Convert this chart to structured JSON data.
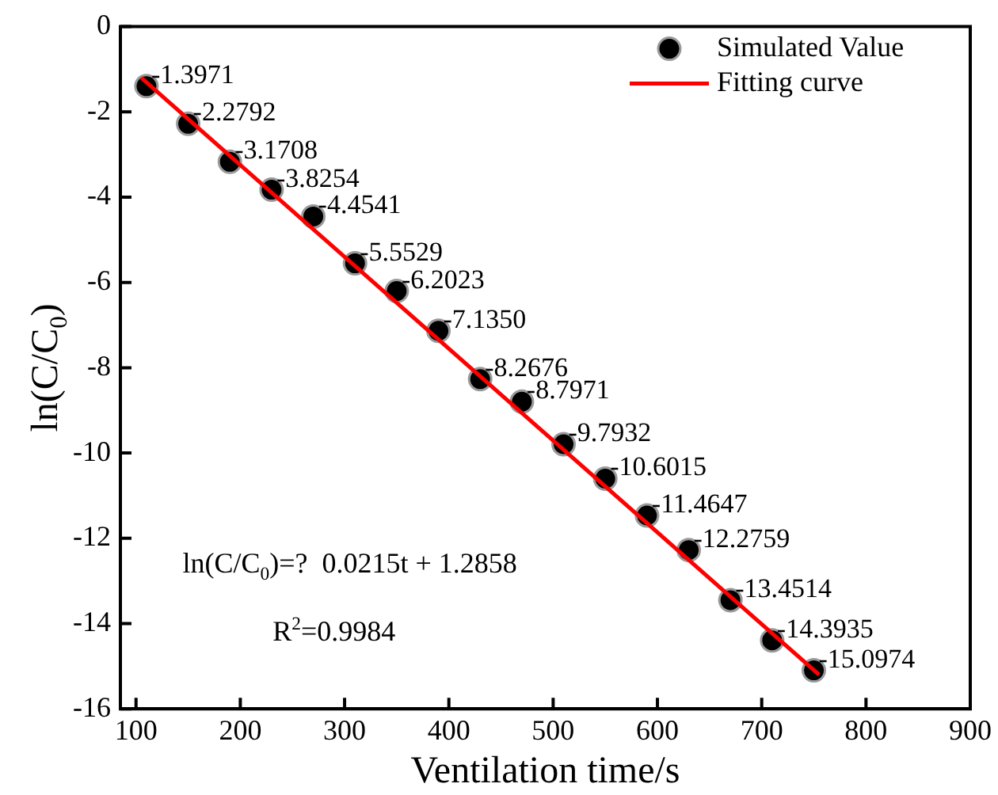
{
  "chart_data": {
    "type": "scatter",
    "xlabel": "Ventilation time/s",
    "ylabel": "ln(C/C$_{0}$)",
    "xlim": [
      85,
      900
    ],
    "xticks": [
      100,
      200,
      300,
      400,
      500,
      600,
      700,
      800,
      900
    ],
    "ylim": [
      -16,
      0
    ],
    "yticks": [
      -16,
      -14,
      -12,
      -10,
      -8,
      -6,
      -4,
      -2,
      0
    ],
    "grid": false,
    "legend": "top right",
    "line_style": "solid",
    "annotations": [
      "ln(C/C$_{0}$)=?  0.0215t + 1.2858",
      "R$^{2}$=0.9984"
    ],
    "series": [
      {
        "name": "Simulated Value",
        "type": "scatter",
        "marker": "circle",
        "color": "#000000",
        "x": [
          110,
          150,
          190,
          230,
          270,
          310,
          350,
          390,
          430,
          470,
          510,
          550,
          590,
          630,
          670,
          710,
          750
        ],
        "values": [
          -1.3971,
          -2.2792,
          -3.1708,
          -3.8254,
          -4.4541,
          -5.5529,
          -6.2023,
          -7.135,
          -8.2676,
          -8.7971,
          -9.7932,
          -10.6015,
          -11.4647,
          -12.2759,
          -13.4514,
          -14.3935,
          -15.0974
        ],
        "value_labels": [
          "-1.3971",
          "-2.2792",
          "-3.1708",
          "-3.8254",
          "-4.4541",
          "-5.5529",
          "-6.2023",
          "-7.1350",
          "-8.2676",
          "-8.7971",
          "-9.7932",
          "-10.6015",
          "-11.4647",
          "-12.2759",
          "-13.4514",
          "-14.3935",
          "-15.0974"
        ]
      },
      {
        "name": "Fitting curve",
        "type": "line",
        "marker": "none",
        "color": "#ff0000",
        "x": [
          105,
          755
        ],
        "values": [
          -1.2,
          -15.2
        ]
      }
    ]
  }
}
